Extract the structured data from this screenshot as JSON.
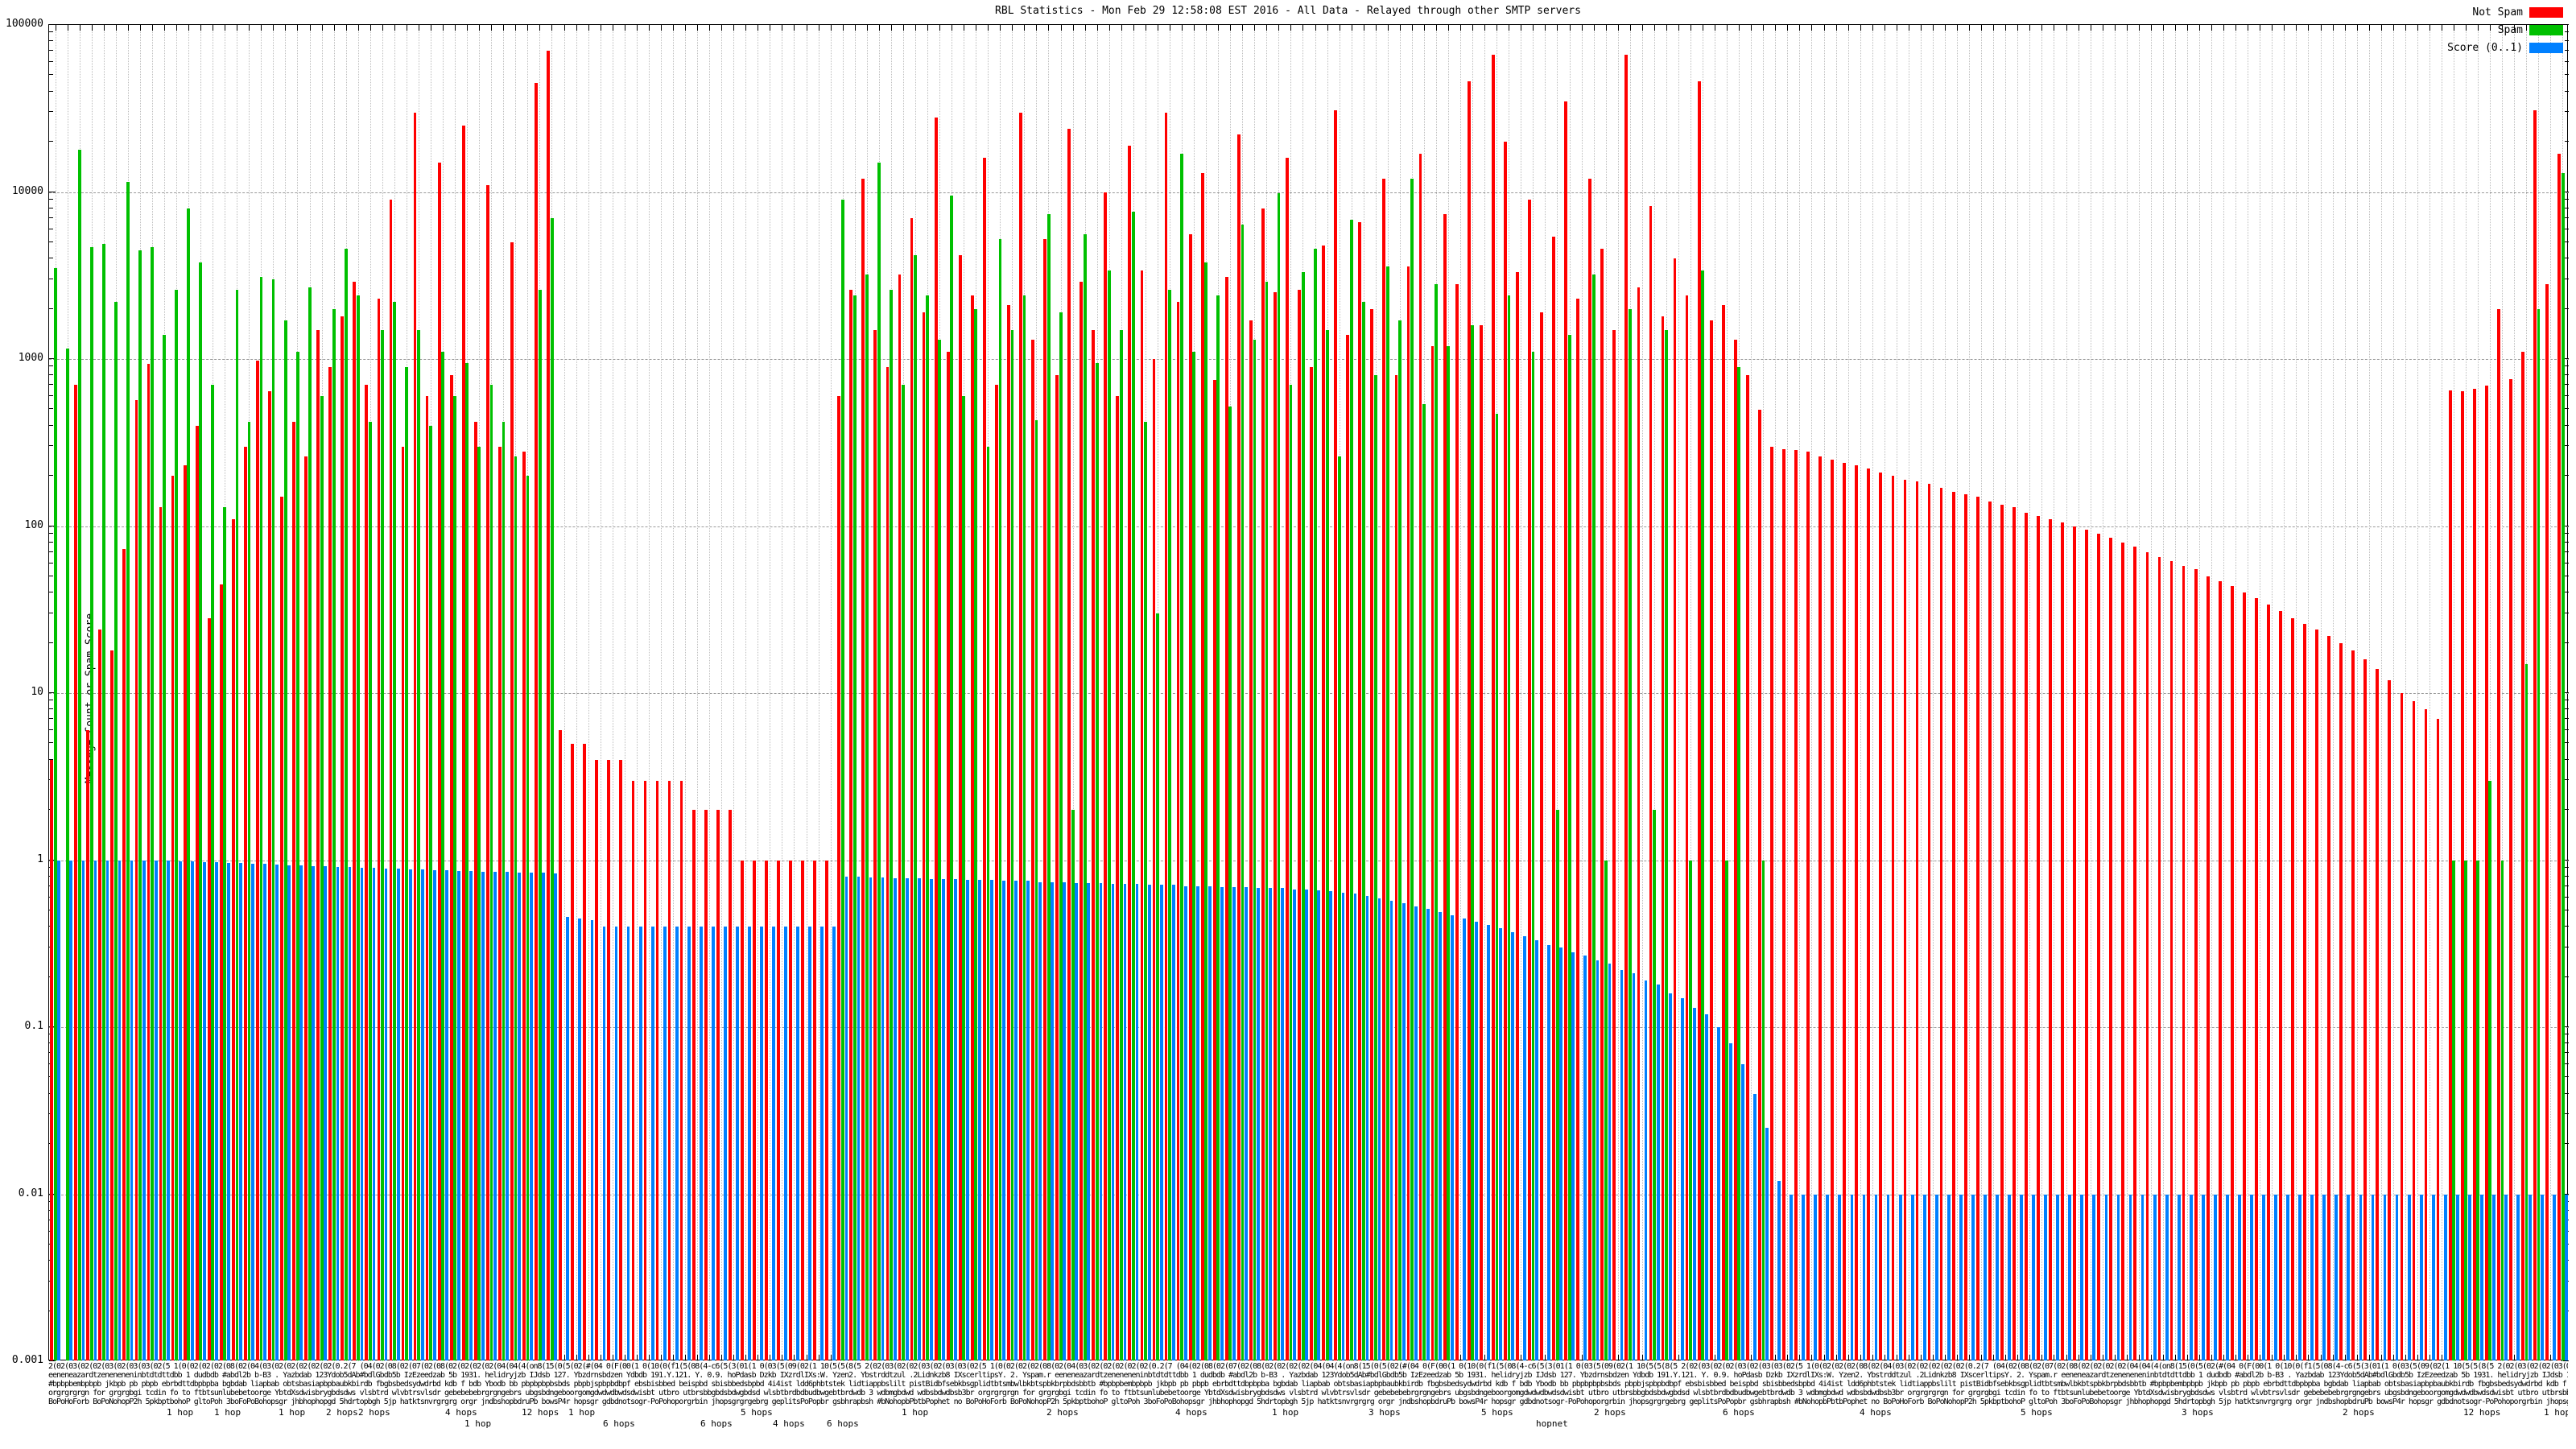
{
  "title": "RBL Statistics - Mon Feb 29 12:58:08 EST 2016 - All Data - Relayed through other SMTP servers",
  "yaxis": {
    "label": "Message Count or Spam Score",
    "ticks": [
      {
        "value": 100000,
        "label": "100000"
      },
      {
        "value": 10000,
        "label": "10000"
      },
      {
        "value": 1000,
        "label": "1000"
      },
      {
        "value": 100,
        "label": "100"
      },
      {
        "value": 10,
        "label": "10"
      },
      {
        "value": 1,
        "label": "1"
      },
      {
        "value": 0.1,
        "label": "0.1"
      },
      {
        "value": 0.01,
        "label": "0.01"
      },
      {
        "value": 0.001,
        "label": "0.001"
      }
    ]
  },
  "legend": [
    {
      "label": "Not Spam",
      "color": "#ff0000"
    },
    {
      "label": "Spam",
      "color": "#00c000"
    },
    {
      "label": "Score (0..1)",
      "color": "#0080ff"
    }
  ],
  "xaxis": {
    "note": "per-bar tic labels are dense overlapping hostname/hop text, illegible at full scale",
    "garble_rows": [
      "2(02(03(02(02(03(02(03(03(02(5 1(0(02(02(02(08(02(04(03(02(02(02(02(02(0.2(7 (04(02(08(02(07(02(08(02(02(02(02(04(04(4(on8(15(0(5(02(#(04 0(F(00(1 0(10(0(f1(5(08(4-c6(5(3(01(1 0(03(5(09(02(1 10(5(5(8(5 ",
      "eeneneazardtzeneneneninbtdtdttdbb 1 dudbdb #abdl2b b-B3 . Yazbdab 123Ydob5dAb#bdlGbdb5b IzEzeedzab 5b 1931. helidryjzb IJdsb 127. Ybzdrnsbdzen Ydbdb 191.Y.121. Y. 0.9. hoPdasb Dzkb IXzrdlIXs:W. Yzen2. Ybstrddtzul .2Lidnkzb8 IXscerltipsY. 2. Yspam.r ",
      "#bpbpbembpbpb jkbpb pb pbpb ebrbdttdbpbpba bgbdab liapbab obtsbasiapbpbaubkbirdb fbgbsbedsydwdrbd kdb f bdb Ybodb bb pbpbpbpbsbds pbpbjspbpbdbpf ebsbisbbed beispbd sbisbbedsbpbd 4i4ist ldd6phbtstek lidtiappbslilt pistBidbfsebkbsgplidtbtsmbwlbkbtspbkbrpbdsbbtb ",
      "orgrgrgrgn for grgrgbgi tcdin fo to ftbtsunlubebetoorge YbtdXsdwisbrygbdsdws vlsbtrd wlvbtrsvlsdr gebebebebrgrgngebrs ubgsbdngeboorgomgdwdwdbwdsdwisbt utbro utbrsbbgbdsbdwgbdsd wlsbtbrdbdbudbwgebtbrdwdb 3 wdbmgbdwd wdbsbdwdbsb3br ",
      "BoPoHoForb BoPoNohopP2h 5pkbptbohoP gltoPoh 3boFoPoBohopsgr jhbhophopgd 5hdrtopbgh 5jp hatktsnvrgrgrg orgr jndbshopbdruPb bowsP4r hopsgr gdbdnotsogr-PoPohoporgrbin jhopsgrgrgebrg geplitsPoPopbr gsbhrapbsh #bNohopbPbtbPophet no "
    ],
    "hops_labels": [
      {
        "x": 147,
        "y": 56,
        "text": "1 hop"
      },
      {
        "x": 206,
        "y": 56,
        "text": "1 hop"
      },
      {
        "x": 286,
        "y": 56,
        "text": "1 hop"
      },
      {
        "x": 345,
        "y": 56,
        "text": "2 hops"
      },
      {
        "x": 385,
        "y": 56,
        "text": "2 hops"
      },
      {
        "x": 493,
        "y": 56,
        "text": "4 hops"
      },
      {
        "x": 517,
        "y": 70,
        "text": "1 hop"
      },
      {
        "x": 588,
        "y": 56,
        "text": "12 hops"
      },
      {
        "x": 646,
        "y": 56,
        "text": "1 hop"
      },
      {
        "x": 689,
        "y": 70,
        "text": "6 hops"
      },
      {
        "x": 810,
        "y": 70,
        "text": "6 hops"
      },
      {
        "x": 860,
        "y": 56,
        "text": "5 hops"
      },
      {
        "x": 900,
        "y": 70,
        "text": "4 hops"
      },
      {
        "x": 967,
        "y": 70,
        "text": "6 hops"
      },
      {
        "x": 1060,
        "y": 56,
        "text": "1 hop"
      },
      {
        "x": 1240,
        "y": 56,
        "text": "2 hops"
      },
      {
        "x": 1400,
        "y": 56,
        "text": "4 hops"
      },
      {
        "x": 1520,
        "y": 56,
        "text": "1 hop"
      },
      {
        "x": 1640,
        "y": 56,
        "text": "3 hops"
      },
      {
        "x": 1780,
        "y": 56,
        "text": "5 hops"
      },
      {
        "x": 1848,
        "y": 70,
        "text": "hopnet"
      },
      {
        "x": 1920,
        "y": 56,
        "text": "2 hops"
      },
      {
        "x": 2080,
        "y": 56,
        "text": "6 hops"
      },
      {
        "x": 2250,
        "y": 56,
        "text": "4 hops"
      },
      {
        "x": 2450,
        "y": 56,
        "text": "5 hops"
      },
      {
        "x": 2650,
        "y": 56,
        "text": "3 hops"
      },
      {
        "x": 2850,
        "y": 56,
        "text": "2 hops"
      },
      {
        "x": 3000,
        "y": 56,
        "text": "12 hops"
      },
      {
        "x": 3100,
        "y": 56,
        "text": "1 hop"
      }
    ]
  },
  "chart_data": {
    "type": "bar",
    "title": "RBL Statistics - Mon Feb 29 12:58:08 EST 2016 - All Data - Relayed through other SMTP servers",
    "xlabel": "",
    "ylabel": "Message Count or Spam Score",
    "yscale": "log",
    "ylim": [
      0.001,
      100000
    ],
    "grid": true,
    "legend_position": "top-right",
    "values_note": "208 clusters; heights estimated from log gridlines; 0 = no bar drawn",
    "series": [
      {
        "name": "Not Spam",
        "color": "#ff0000",
        "values": [
          4,
          0,
          700,
          6,
          24,
          18,
          73,
          570,
          940,
          130,
          200,
          230,
          400,
          28,
          45,
          110,
          300,
          980,
          640,
          150,
          420,
          260,
          1500,
          900,
          1800,
          2900,
          700,
          2300,
          9000,
          300,
          30000,
          600,
          15000,
          800,
          25000,
          420,
          11000,
          300,
          5000,
          280,
          45000,
          70000,
          6,
          5,
          5,
          4,
          4,
          4,
          3,
          3,
          3,
          3,
          3,
          2,
          2,
          2,
          2,
          1,
          1,
          1,
          1,
          1,
          1,
          1,
          1,
          600,
          2600,
          12000,
          1500,
          900,
          3200,
          7000,
          1900,
          28000,
          1100,
          4200,
          2400,
          16000,
          700,
          2100,
          30000,
          1300,
          5200,
          800,
          24000,
          2900,
          1500,
          10000,
          600,
          19000,
          3400,
          1000,
          30000,
          2200,
          5600,
          13000,
          750,
          3100,
          22000,
          1700,
          8000,
          2500,
          16000,
          2600,
          900,
          4800,
          31000,
          1400,
          6600,
          2000,
          12000,
          800,
          3600,
          17000,
          1200,
          7400,
          2800,
          46000,
          1600,
          66000,
          20000,
          3300,
          9000,
          1900,
          5400,
          35000,
          2300,
          12000,
          4600,
          1500,
          66000,
          2700,
          8200,
          1800,
          4000,
          2400,
          46000,
          1700,
          2100,
          1300,
          800,
          500,
          300,
          290,
          285,
          280,
          260,
          250,
          240,
          230,
          220,
          210,
          200,
          190,
          185,
          180,
          170,
          160,
          155,
          150,
          140,
          135,
          130,
          120,
          115,
          110,
          105,
          100,
          95,
          90,
          85,
          80,
          75,
          70,
          65,
          62,
          58,
          55,
          50,
          47,
          44,
          40,
          37,
          34,
          31,
          28,
          26,
          24,
          22,
          20,
          18,
          16,
          14,
          12,
          10,
          9,
          8,
          7,
          650,
          640,
          660,
          690,
          2000,
          760,
          1100,
          31000,
          2800,
          17000
        ]
      },
      {
        "name": "Spam",
        "color": "#00c000",
        "values": [
          3500,
          1150,
          18000,
          4700,
          4900,
          2200,
          11500,
          4500,
          4700,
          1400,
          2600,
          8000,
          3800,
          700,
          130,
          2600,
          420,
          3100,
          3000,
          1700,
          1100,
          2700,
          600,
          2000,
          4600,
          2400,
          420,
          1500,
          2200,
          900,
          1500,
          400,
          1100,
          600,
          950,
          300,
          700,
          420,
          260,
          200,
          2600,
          7000,
          0,
          0,
          0,
          0,
          0,
          0,
          0,
          0,
          0,
          0,
          0,
          0,
          0,
          0,
          0,
          0,
          0,
          0,
          0,
          0,
          0,
          0,
          0,
          9000,
          2400,
          3200,
          15000,
          2600,
          700,
          4200,
          2400,
          1300,
          9500,
          600,
          2000,
          300,
          5200,
          1500,
          2400,
          430,
          7400,
          1900,
          2,
          5600,
          950,
          3400,
          1500,
          7600,
          420,
          30,
          2600,
          17000,
          1100,
          3800,
          2400,
          520,
          6400,
          1300,
          2900,
          9800,
          700,
          3300,
          4600,
          1500,
          260,
          6800,
          2200,
          800,
          3600,
          1700,
          12000,
          540,
          2800,
          1200,
          0,
          1600,
          0,
          470,
          2400,
          0,
          1100,
          0,
          2,
          1400,
          0,
          3200,
          1,
          0,
          2000,
          0,
          2,
          1500,
          0,
          1,
          3400,
          0,
          1,
          900,
          0,
          1,
          0,
          0,
          0,
          0,
          0,
          0,
          0,
          0,
          0,
          0,
          0,
          0,
          0,
          0,
          0,
          0,
          0,
          0,
          0,
          0,
          0,
          0,
          0,
          0,
          0,
          0,
          0,
          0,
          0,
          0,
          0,
          0,
          0,
          0,
          0,
          0,
          0,
          0,
          0,
          0,
          0,
          0,
          0,
          0,
          0,
          0,
          0,
          0,
          0,
          0,
          0,
          0,
          0,
          0,
          0,
          0,
          1,
          1,
          1,
          3,
          1,
          0,
          15,
          2000,
          0,
          13000
        ]
      },
      {
        "name": "Score (0..1)",
        "color": "#0080ff",
        "values": [
          1,
          1,
          1,
          1,
          1,
          1,
          1,
          1,
          0.99,
          0.99,
          0.98,
          0.98,
          0.97,
          0.97,
          0.96,
          0.96,
          0.95,
          0.95,
          0.94,
          0.93,
          0.93,
          0.92,
          0.92,
          0.91,
          0.91,
          0.9,
          0.9,
          0.89,
          0.89,
          0.88,
          0.88,
          0.87,
          0.87,
          0.86,
          0.86,
          0.85,
          0.85,
          0.85,
          0.84,
          0.84,
          0.84,
          0.83,
          0.46,
          0.45,
          0.44,
          0.4,
          0.4,
          0.4,
          0.4,
          0.4,
          0.4,
          0.4,
          0.4,
          0.4,
          0.4,
          0.4,
          0.4,
          0.4,
          0.4,
          0.4,
          0.4,
          0.4,
          0.4,
          0.4,
          0.4,
          0.8,
          0.8,
          0.79,
          0.79,
          0.78,
          0.78,
          0.78,
          0.77,
          0.77,
          0.77,
          0.76,
          0.76,
          0.76,
          0.75,
          0.75,
          0.75,
          0.74,
          0.74,
          0.74,
          0.73,
          0.73,
          0.73,
          0.72,
          0.72,
          0.72,
          0.71,
          0.71,
          0.71,
          0.7,
          0.7,
          0.7,
          0.69,
          0.69,
          0.69,
          0.68,
          0.68,
          0.68,
          0.67,
          0.67,
          0.66,
          0.65,
          0.64,
          0.63,
          0.61,
          0.59,
          0.57,
          0.55,
          0.53,
          0.51,
          0.49,
          0.47,
          0.45,
          0.43,
          0.41,
          0.39,
          0.37,
          0.35,
          0.33,
          0.31,
          0.3,
          0.28,
          0.27,
          0.25,
          0.24,
          0.22,
          0.21,
          0.19,
          0.18,
          0.16,
          0.15,
          0.13,
          0.12,
          0.1,
          0.08,
          0.06,
          0.04,
          0.025,
          0.012,
          0.01,
          0.01,
          0.01,
          0.01,
          0.01,
          0.01,
          0.01,
          0.01,
          0.01,
          0.01,
          0.01,
          0.01,
          0.01,
          0.01,
          0.01,
          0.01,
          0.01,
          0.01,
          0.01,
          0.01,
          0.01,
          0.01,
          0.01,
          0.01,
          0.01,
          0.01,
          0.01,
          0.01,
          0.01,
          0.01,
          0.01,
          0.01,
          0.01,
          0.01,
          0.01,
          0.01,
          0.01,
          0.01,
          0.01,
          0.01,
          0.01,
          0.01,
          0.01,
          0.01,
          0.01,
          0.01,
          0.01,
          0.01,
          0.01,
          0.01,
          0.01,
          0.01,
          0.01,
          0.01,
          0.01,
          0.01,
          0.01,
          0.01,
          0.01,
          0.01,
          0.01,
          0.01,
          0.01,
          0.01,
          0.01
        ]
      }
    ]
  }
}
